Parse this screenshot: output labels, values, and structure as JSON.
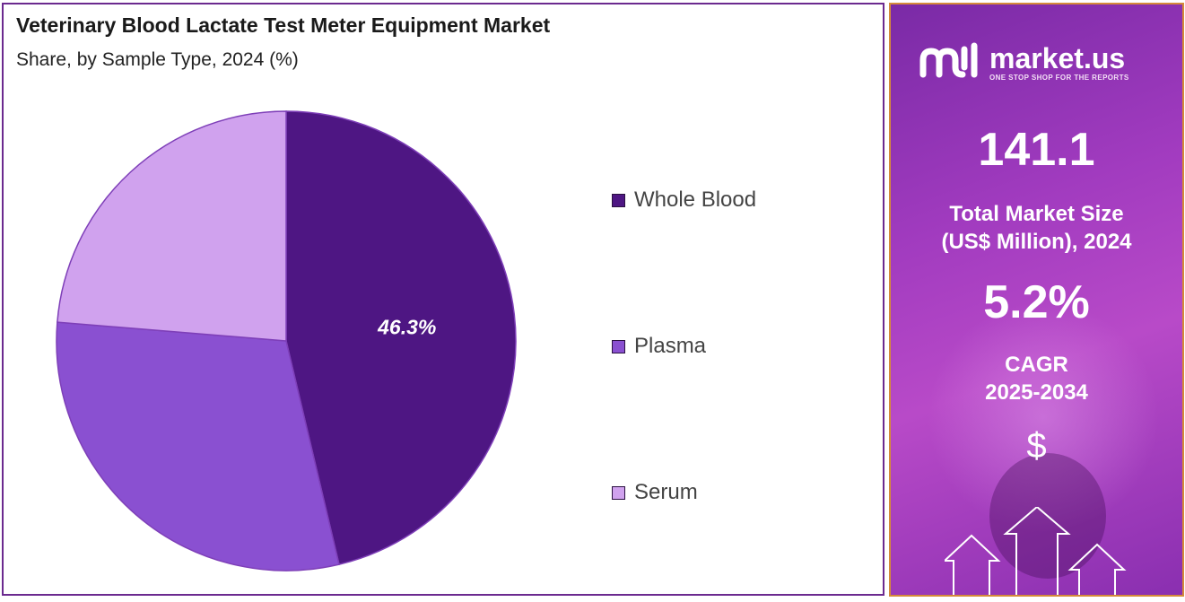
{
  "chart_data": {
    "type": "pie",
    "title": "Veterinary Blood Lactate Test Meter Equipment Market",
    "subtitle": "Share, by Sample Type, 2024 (%)",
    "slices": [
      {
        "label": "Whole Blood",
        "value": 46.3,
        "color": "#4e1683",
        "data_label": "46.3%"
      },
      {
        "label": "Plasma",
        "value": 30.0,
        "color": "#8a50d1",
        "data_label": ""
      },
      {
        "label": "Serum",
        "value": 23.7,
        "color": "#d0a2ee",
        "data_label": ""
      }
    ]
  },
  "brand": {
    "name": "market.us",
    "tagline": "ONE STOP SHOP FOR THE REPORTS"
  },
  "stats": {
    "market_size_value": "141.1",
    "market_size_label_line1": "Total Market Size",
    "market_size_label_line2": "(US$ Million), 2024",
    "cagr_value": "5.2%",
    "cagr_label_line1": "CAGR",
    "cagr_label_line2": "2025-2034",
    "currency_symbol": "$"
  },
  "icons": {
    "dollar": "dollar-icon",
    "arrows": "growth-arrows-icon",
    "logo": "market-us-logo-icon"
  }
}
